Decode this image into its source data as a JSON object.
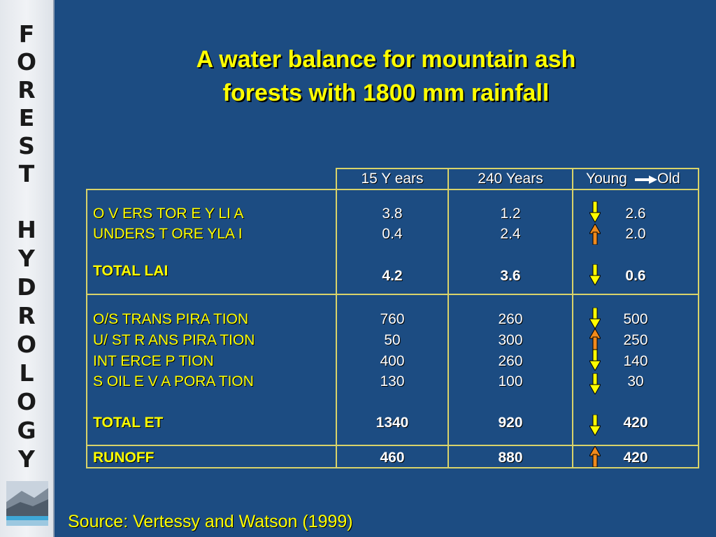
{
  "sidebar": {
    "letters": [
      "F",
      "O",
      "R",
      "E",
      "S",
      "T",
      "H",
      "Y",
      "D",
      "R",
      "O",
      "L",
      "O",
      "G",
      "Y"
    ],
    "logo_icon": "landscape-logo-icon"
  },
  "title": {
    "line1": "A water balance for mountain ash",
    "line2": "forests with 1800 mm rainfall"
  },
  "table": {
    "headers": {
      "col1": "15 Y ears",
      "col2": "240 Years",
      "col3_left": "Young",
      "col3_right": "Old",
      "col3_arrow_icon": "right-arrow-icon"
    },
    "rows": [
      {
        "label": "O V ERS TOR E Y   LI A",
        "v1": "3.8",
        "v2": "1.2",
        "change": "2.6",
        "direction": "down",
        "bold": false
      },
      {
        "label": "UNDERS T ORE YLA I",
        "v1": "0.4",
        "v2": "2.4",
        "change": "2.0",
        "direction": "up",
        "bold": false
      },
      {
        "label": "TOTAL LAI",
        "v1": "4.2",
        "v2": "3.6",
        "change": "0.6",
        "direction": "down",
        "bold": true
      },
      {
        "label": "O/S TRANS PIRA TION",
        "v1": "760",
        "v2": "260",
        "change": "500",
        "direction": "down",
        "bold": false
      },
      {
        "label": "U/ ST R ANS PIRA TION",
        "v1": "50",
        "v2": "300",
        "change": "250",
        "direction": "up",
        "bold": false
      },
      {
        "label": "INT ERCE P TION",
        "v1": "400",
        "v2": "260",
        "change": "140",
        "direction": "down",
        "bold": false
      },
      {
        "label": "S OIL   E V A PORA TION",
        "v1": "130",
        "v2": "100",
        "change": "30",
        "direction": "down",
        "bold": false
      },
      {
        "label": "TOTAL   ET",
        "v1": "1340",
        "v2": "920",
        "change": "420",
        "direction": "down",
        "bold": true
      },
      {
        "label": "RUNOFF",
        "v1": "460",
        "v2": "880",
        "change": "420",
        "direction": "up",
        "bold": true
      }
    ]
  },
  "colors": {
    "background": "#1c4c82",
    "title": "#ffff00",
    "border": "#d9d36a",
    "arrow_down": "#ffff00",
    "arrow_up": "#f08a1c"
  },
  "source": "Source: Vertessy and Watson (1999)"
}
